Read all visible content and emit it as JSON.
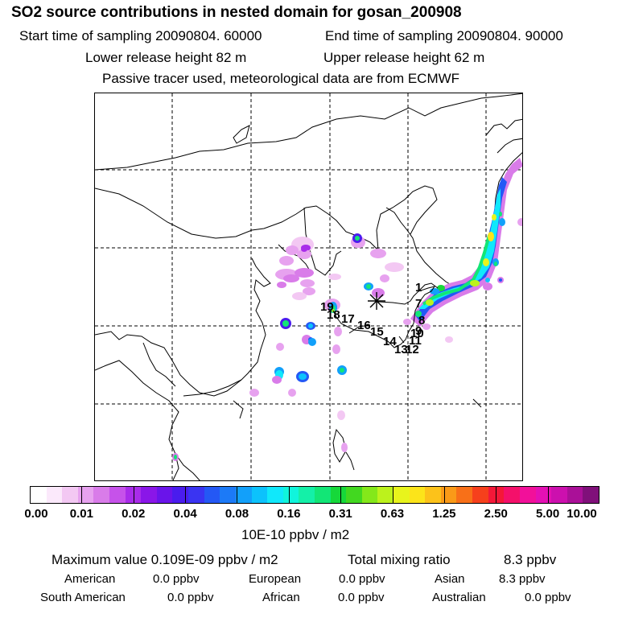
{
  "header": {
    "title": "SO2 source contributions in nested domain for gosan_200908",
    "start_time": "Start time of sampling 20090804. 60000",
    "end_time": "End time of sampling 20090804. 90000",
    "lower_release": "Lower release height   82 m",
    "upper_release": "Upper release height   62 m",
    "tracer_note": "Passive tracer used, meteorological data are from ECMWF"
  },
  "map": {
    "receptor_icon": "star-marker",
    "trajectory_labels": [
      "19",
      "18",
      "17",
      "16",
      "15",
      "14",
      "13",
      "12",
      "11",
      "10",
      "9",
      "8",
      "7",
      "1"
    ]
  },
  "colorbar": {
    "labels": [
      "0.00",
      "0.01",
      "0.02",
      "0.04",
      "0.08",
      "0.16",
      "0.31",
      "0.63",
      "1.25",
      "2.50",
      "5.00",
      "10.00"
    ],
    "colors": [
      "#ffffff",
      "#fbe9fb",
      "#f3c8f3",
      "#e7a2ef",
      "#d97ce9",
      "#c652ea",
      "#a92cea",
      "#8a16e8",
      "#6a14ea",
      "#4a1cee",
      "#3a34f2",
      "#2458f5",
      "#1c7af7",
      "#12a0fa",
      "#0cc2fc",
      "#10e8fb",
      "#10f5dc",
      "#14f0a8",
      "#12e676",
      "#16d83a",
      "#42d820",
      "#84e81a",
      "#bcf21c",
      "#e8f41c",
      "#fce41a",
      "#fcc21a",
      "#fa9a18",
      "#f87018",
      "#f6401c",
      "#f41838",
      "#f4106a",
      "#f2109a",
      "#e410b4",
      "#cc10ae",
      "#aa1098",
      "#80107a"
    ],
    "unit": "10E-10 ppbv / m2"
  },
  "stats": {
    "max_label": "Maximum value  0.109E-09 ppbv / m2",
    "total_label": "Total mixing ratio",
    "total_value": "8.3 ppbv",
    "american_label": "American",
    "american_value": "0.0 ppbv",
    "european_label": "European",
    "european_value": "0.0 ppbv",
    "asian_label": "Asian",
    "asian_value": "8.3 ppbv",
    "south_american_label": "South American",
    "south_american_value": "0.0 ppbv",
    "african_label": "African",
    "african_value": "0.0 ppbv",
    "australian_label": "Australian",
    "australian_value": "0.0 ppbv"
  }
}
